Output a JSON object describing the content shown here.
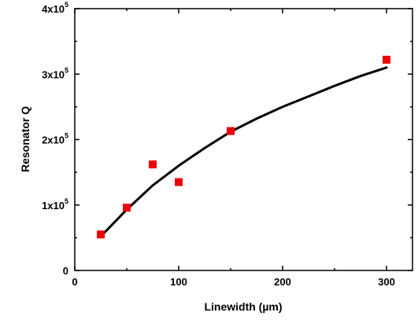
{
  "chart_data": {
    "type": "scatter",
    "title": "",
    "xlabel": "Linewidth (µm)",
    "ylabel": "Resonator Q",
    "xlim": [
      0,
      325
    ],
    "ylim": [
      0,
      400000
    ],
    "x_ticks": [
      0,
      100,
      200,
      300
    ],
    "y_ticks": [
      {
        "value": 0,
        "base": "0",
        "exp": ""
      },
      {
        "value": 100000,
        "base": "1x10",
        "exp": "5"
      },
      {
        "value": 200000,
        "base": "2x10",
        "exp": "5"
      },
      {
        "value": 300000,
        "base": "3x10",
        "exp": "5"
      },
      {
        "value": 400000,
        "base": "4x10",
        "exp": "5"
      }
    ],
    "x_tick_labels": [
      "0",
      "100",
      "200",
      "300"
    ],
    "series": [
      {
        "kind": "markers",
        "marker": "square",
        "color": "#ee0000",
        "x": [
          25,
          50,
          75,
          100,
          150,
          300
        ],
        "y": [
          55000,
          96000,
          162000,
          135000,
          213000,
          322000
        ]
      },
      {
        "kind": "fit-line",
        "color": "#000000",
        "x": [
          25,
          50,
          75,
          100,
          125,
          150,
          175,
          200,
          225,
          250,
          275,
          300
        ],
        "y": [
          52000,
          93000,
          130000,
          160000,
          187000,
          212000,
          232000,
          250000,
          266000,
          282000,
          297000,
          310000
        ]
      }
    ],
    "grid": false,
    "legend": "none"
  }
}
